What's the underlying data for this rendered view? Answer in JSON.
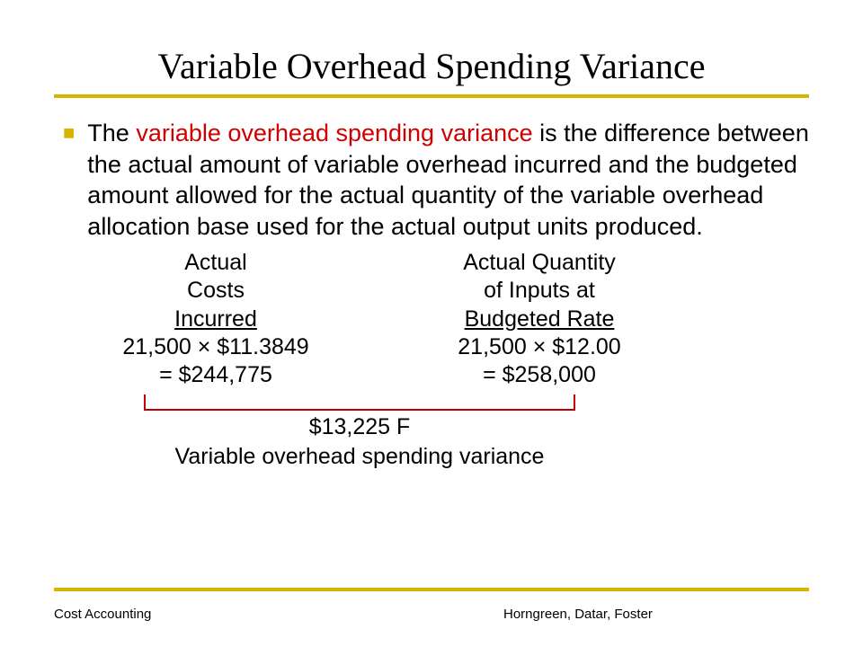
{
  "title": "Variable Overhead Spending Variance",
  "bullet": {
    "prefix": "The ",
    "highlight": "variable overhead spending variance",
    "rest": " is  the difference between the actual amount of variable overhead incurred and the budgeted amount allowed for the actual quantity of the variable overhead allocation base used for the actual output units produced."
  },
  "calc": {
    "left": {
      "h1": "Actual",
      "h2": "Costs",
      "h3": " Incurred ",
      "line1": "21,500 × $11.3849",
      "line2": "= $244,775"
    },
    "right": {
      "h1": "Actual Quantity",
      "h2": "of Inputs at",
      "h3": "Budgeted Rate",
      "line1": "21,500 × $12.00",
      "line2": "= $258,000"
    }
  },
  "variance": {
    "amount": "$13,225 F",
    "label": "Variable overhead spending variance"
  },
  "footer": {
    "left": "Cost Accounting",
    "center": "Horngreen, Datar, Foster"
  },
  "colors": {
    "accent": "#d6b400",
    "highlight": "#d00000",
    "bracket": "#c00000"
  }
}
